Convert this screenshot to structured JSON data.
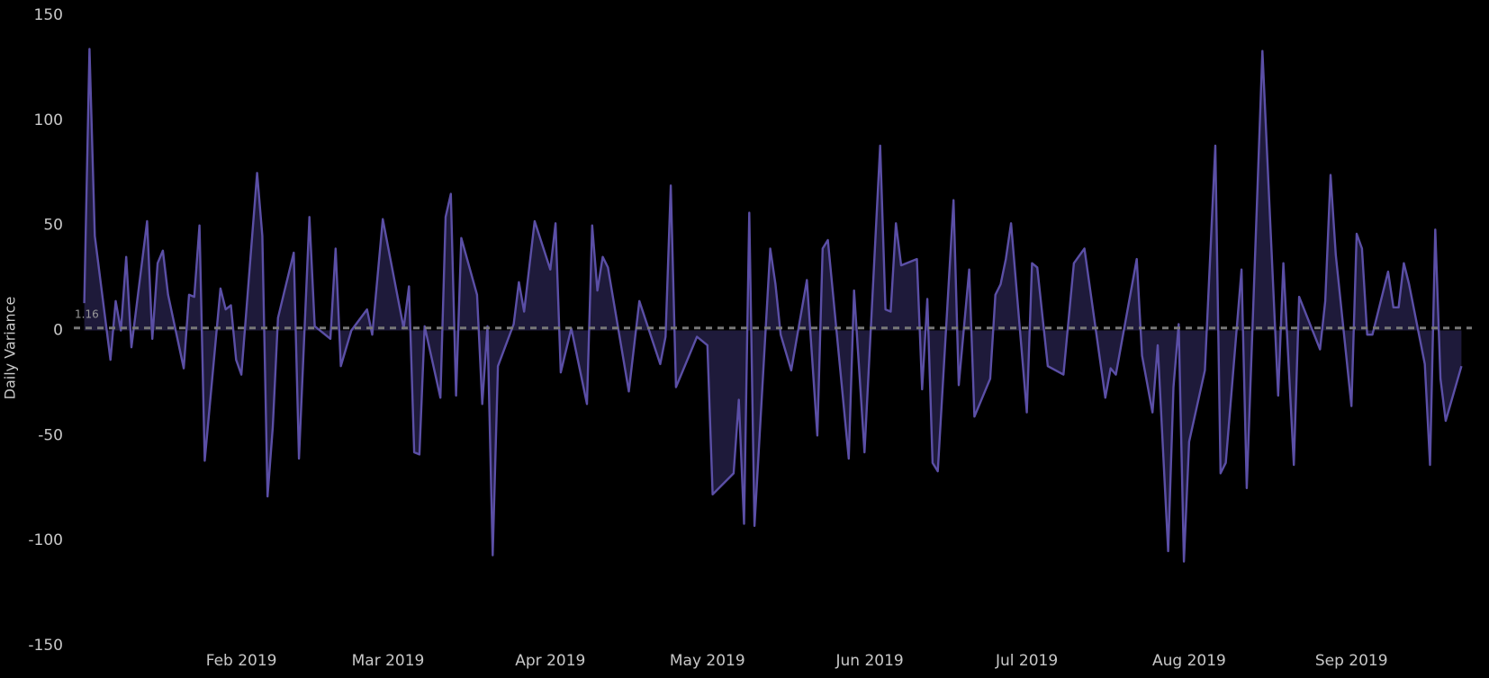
{
  "chart_data": {
    "type": "area",
    "ylabel": "Daily Variance",
    "color": "#5b4fa6",
    "fill": "#1e1a3a",
    "background": "#000000",
    "reference_line": 1.16,
    "x": [
      "2019-01-02",
      "2019-01-03",
      "2019-01-04",
      "2019-01-07",
      "2019-01-08",
      "2019-01-09",
      "2019-01-10",
      "2019-01-11",
      "2019-01-14",
      "2019-01-15",
      "2019-01-16",
      "2019-01-17",
      "2019-01-18",
      "2019-01-21",
      "2019-01-22",
      "2019-01-23",
      "2019-01-24",
      "2019-01-25",
      "2019-01-28",
      "2019-01-29",
      "2019-01-30",
      "2019-01-31",
      "2019-02-01",
      "2019-02-04",
      "2019-02-05",
      "2019-02-06",
      "2019-02-07",
      "2019-02-08",
      "2019-02-11",
      "2019-02-12",
      "2019-02-14",
      "2019-02-15",
      "2019-02-18",
      "2019-02-19",
      "2019-02-20",
      "2019-02-22",
      "2019-02-25",
      "2019-02-26",
      "2019-02-28",
      "2019-03-04",
      "2019-03-05",
      "2019-03-06",
      "2019-03-07",
      "2019-03-08",
      "2019-03-11",
      "2019-03-12",
      "2019-03-13",
      "2019-03-14",
      "2019-03-15",
      "2019-03-18",
      "2019-03-19",
      "2019-03-20",
      "2019-03-21",
      "2019-03-22",
      "2019-03-25",
      "2019-03-26",
      "2019-03-27",
      "2019-03-29",
      "2019-04-01",
      "2019-04-02",
      "2019-04-03",
      "2019-04-05",
      "2019-04-08",
      "2019-04-09",
      "2019-04-10",
      "2019-04-11",
      "2019-04-12",
      "2019-04-16",
      "2019-04-18",
      "2019-04-22",
      "2019-04-23",
      "2019-04-24",
      "2019-04-25",
      "2019-04-29",
      "2019-05-01",
      "2019-05-02",
      "2019-05-06",
      "2019-05-07",
      "2019-05-08",
      "2019-05-09",
      "2019-05-10",
      "2019-05-13",
      "2019-05-14",
      "2019-05-15",
      "2019-05-17",
      "2019-05-20",
      "2019-05-22",
      "2019-05-23",
      "2019-05-24",
      "2019-05-28",
      "2019-05-29",
      "2019-05-31",
      "2019-06-03",
      "2019-06-04",
      "2019-06-05",
      "2019-06-06",
      "2019-06-07",
      "2019-06-10",
      "2019-06-11",
      "2019-06-12",
      "2019-06-13",
      "2019-06-14",
      "2019-06-17",
      "2019-06-18",
      "2019-06-20",
      "2019-06-21",
      "2019-06-24",
      "2019-06-25",
      "2019-06-26",
      "2019-06-27",
      "2019-06-28",
      "2019-07-01",
      "2019-07-02",
      "2019-07-03",
      "2019-07-05",
      "2019-07-08",
      "2019-07-10",
      "2019-07-12",
      "2019-07-16",
      "2019-07-17",
      "2019-07-18",
      "2019-07-22",
      "2019-07-23",
      "2019-07-25",
      "2019-07-26",
      "2019-07-28",
      "2019-07-29",
      "2019-07-30",
      "2019-07-31",
      "2019-08-01",
      "2019-08-04",
      "2019-08-06",
      "2019-08-07",
      "2019-08-08",
      "2019-08-11",
      "2019-08-12",
      "2019-08-15",
      "2019-08-18",
      "2019-08-19",
      "2019-08-21",
      "2019-08-22",
      "2019-08-26",
      "2019-08-27",
      "2019-08-28",
      "2019-08-29",
      "2019-09-01",
      "2019-09-02",
      "2019-09-03",
      "2019-09-04",
      "2019-09-05",
      "2019-09-08",
      "2019-09-09",
      "2019-09-10",
      "2019-09-11",
      "2019-09-12",
      "2019-09-15",
      "2019-09-16",
      "2019-09-17",
      "2019-09-18",
      "2019-09-19",
      "2019-09-22"
    ],
    "values": [
      13,
      134,
      45,
      -14,
      14,
      0,
      35,
      -8,
      52,
      -4,
      32,
      38,
      17,
      -18,
      17,
      16,
      50,
      -62,
      20,
      10,
      12,
      -14,
      -21,
      75,
      45,
      -79,
      -46,
      6,
      37,
      -61,
      54,
      2,
      -4,
      39,
      -17,
      0,
      10,
      -2,
      53,
      1,
      21,
      -58,
      -59,
      2,
      -32,
      54,
      65,
      -31,
      44,
      17,
      -35,
      2,
      -107,
      -17,
      3,
      23,
      9,
      52,
      29,
      51,
      -20,
      1,
      -35,
      50,
      19,
      35,
      30,
      -29,
      14,
      -16,
      -3,
      69,
      -27,
      -3,
      -7,
      -78,
      -68,
      -33,
      -92,
      56,
      -93,
      39,
      22,
      -2,
      -19,
      24,
      -50,
      39,
      43,
      -61,
      19,
      -58,
      88,
      10,
      9,
      51,
      31,
      34,
      -28,
      15,
      -63,
      -67,
      62,
      -26,
      29,
      -41,
      -23,
      17,
      22,
      34,
      51,
      -39,
      32,
      30,
      -17,
      -21,
      32,
      39,
      -32,
      -18,
      -21,
      34,
      -12,
      -39,
      -7,
      -105,
      -27,
      3,
      -110,
      -53,
      -19,
      88,
      -68,
      -63,
      29,
      -75,
      133,
      -31,
      32,
      -64,
      16,
      -9,
      14,
      74,
      36,
      -36,
      46,
      39,
      -2,
      -2,
      28,
      11,
      11,
      32,
      22,
      -16,
      -64,
      48,
      -23,
      -43,
      -17
    ],
    "xlim": [
      "2018-12-31",
      "2019-09-24"
    ],
    "xticks": [
      {
        "value": "2019-02-01",
        "label": "Feb 2019"
      },
      {
        "value": "2019-03-01",
        "label": "Mar 2019"
      },
      {
        "value": "2019-04-01",
        "label": "Apr 2019"
      },
      {
        "value": "2019-05-01",
        "label": "May 2019"
      },
      {
        "value": "2019-06-01",
        "label": "Jun 2019"
      },
      {
        "value": "2019-07-01",
        "label": "Jul 2019"
      },
      {
        "value": "2019-08-01",
        "label": "Aug 2019"
      },
      {
        "value": "2019-09-01",
        "label": "Sep 2019"
      }
    ],
    "ylim": [
      -150,
      150
    ],
    "yticks": [
      -150,
      -100,
      -50,
      0,
      50,
      100,
      150
    ]
  }
}
